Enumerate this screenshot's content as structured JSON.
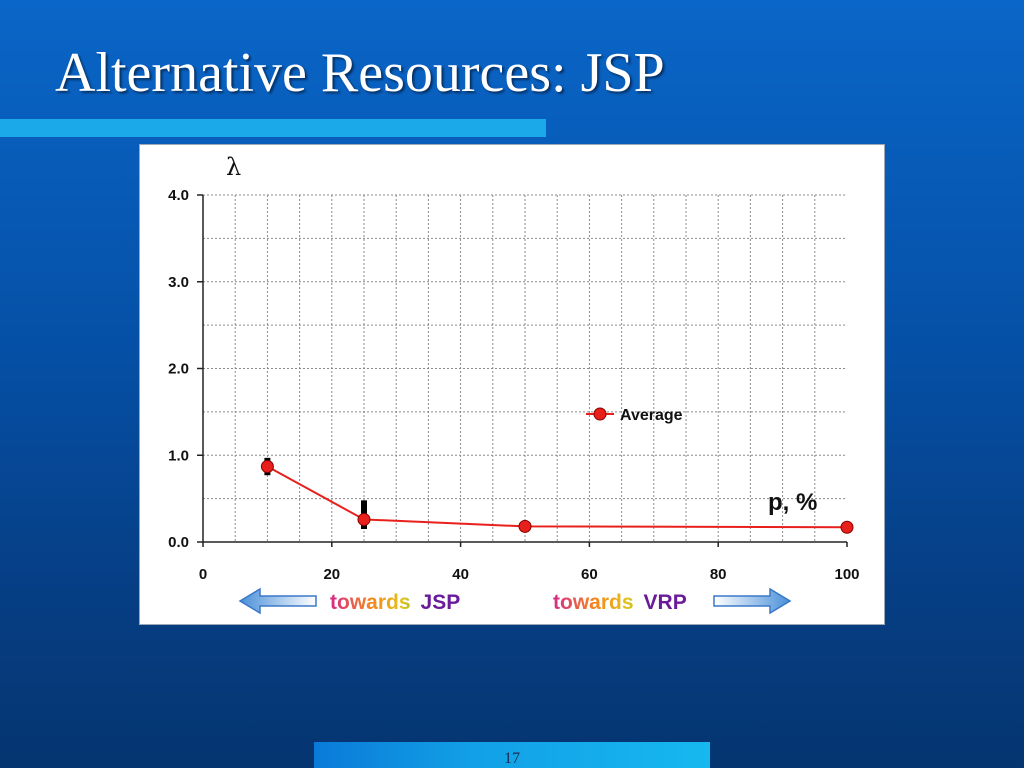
{
  "slide": {
    "title": "Alternative Resources: JSP",
    "page_number": "17"
  },
  "chart_data": {
    "type": "line",
    "ylabel": "λ",
    "xlabel": "p, %",
    "xlim": [
      0,
      100
    ],
    "ylim": [
      0,
      4
    ],
    "x_ticks": [
      0,
      20,
      40,
      60,
      80,
      100
    ],
    "y_ticks": [
      "0.0",
      "1.0",
      "2.0",
      "3.0",
      "4.0"
    ],
    "grid": true,
    "legend_position": "center-right",
    "series": [
      {
        "name": "Average",
        "color": "#e8201c",
        "x": [
          10,
          25,
          50,
          100
        ],
        "y": [
          0.87,
          0.26,
          0.18,
          0.17
        ],
        "error_low": [
          0.77,
          0.15,
          0.13,
          0.12
        ],
        "error_high": [
          0.97,
          0.48,
          0.23,
          0.22
        ]
      }
    ],
    "annotations": {
      "left_label": {
        "word": "towards",
        "target": "JSP"
      },
      "right_label": {
        "word": "towards",
        "target": "VRP"
      }
    }
  }
}
